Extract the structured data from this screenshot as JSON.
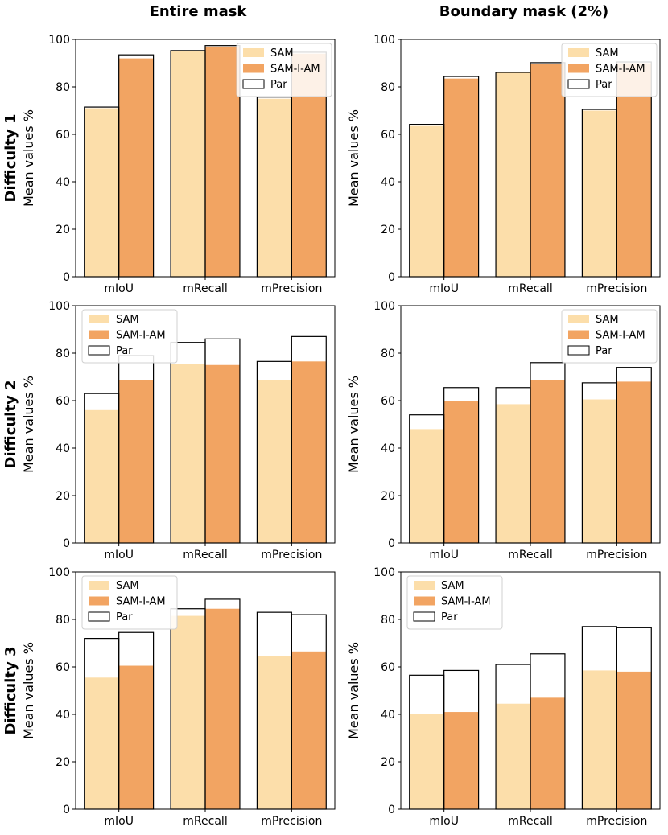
{
  "figure": {
    "column_titles": [
      "Entire mask",
      "Boundary mask (2%)"
    ],
    "row_labels": [
      "Difficulty 1",
      "Difficulty 2",
      "Difficulty 3"
    ]
  },
  "colors": {
    "SAM": "#fcdeaa",
    "SAM-I-AM": "#f2a462",
    "Par_edge": "#000000"
  },
  "chart_data": [
    {
      "type": "bar",
      "row": "Difficulty 1",
      "column": "Entire mask",
      "categories": [
        "mIoU",
        "mRecall",
        "mPrecision"
      ],
      "ylabel": "Mean values %",
      "ylim": [
        0,
        100
      ],
      "yticks": [
        0,
        20,
        40,
        60,
        80,
        100
      ],
      "legend": {
        "entries": [
          "SAM",
          "SAM-I-AM",
          "Par"
        ],
        "position": "upper-right"
      },
      "series": [
        {
          "name": "SAM",
          "values": [
            71,
            95,
            75
          ]
        },
        {
          "name": "SAM-I-AM",
          "values": [
            92,
            97,
            94
          ]
        },
        {
          "name": "Par",
          "values": [
            [
              71.5,
              93.5
            ],
            [
              95.3,
              97.4
            ],
            [
              75.7,
              94.6
            ]
          ]
        }
      ]
    },
    {
      "type": "bar",
      "row": "Difficulty 1",
      "column": "Boundary mask (2%)",
      "categories": [
        "mIoU",
        "mRecall",
        "mPrecision"
      ],
      "ylabel": "Mean values %",
      "ylim": [
        0,
        100
      ],
      "yticks": [
        0,
        20,
        40,
        60,
        80,
        100
      ],
      "legend": {
        "entries": [
          "SAM",
          "SAM-I-AM",
          "Par"
        ],
        "position": "upper-right"
      },
      "series": [
        {
          "name": "SAM",
          "values": [
            63.5,
            86,
            70
          ]
        },
        {
          "name": "SAM-I-AM",
          "values": [
            83.5,
            89.8,
            90
          ]
        },
        {
          "name": "Par",
          "values": [
            [
              64.2,
              84.4
            ],
            [
              86.1,
              90.2
            ],
            [
              70.5,
              90.5
            ]
          ]
        }
      ]
    },
    {
      "type": "bar",
      "row": "Difficulty 2",
      "column": "Entire mask",
      "categories": [
        "mIoU",
        "mRecall",
        "mPrecision"
      ],
      "ylabel": "Mean values %",
      "ylim": [
        0,
        100
      ],
      "yticks": [
        0,
        20,
        40,
        60,
        80,
        100
      ],
      "legend": {
        "entries": [
          "SAM",
          "SAM-I-AM",
          "Par"
        ],
        "position": "upper-left"
      },
      "series": [
        {
          "name": "SAM",
          "values": [
            56,
            75.5,
            68.5
          ]
        },
        {
          "name": "SAM-I-AM",
          "values": [
            68.5,
            75,
            76.5
          ]
        },
        {
          "name": "Par",
          "values": [
            [
              63,
              79
            ],
            [
              84.5,
              86
            ],
            [
              76.5,
              87
            ]
          ]
        }
      ]
    },
    {
      "type": "bar",
      "row": "Difficulty 2",
      "column": "Boundary mask (2%)",
      "categories": [
        "mIoU",
        "mRecall",
        "mPrecision"
      ],
      "ylabel": "Mean values %",
      "ylim": [
        0,
        100
      ],
      "yticks": [
        0,
        20,
        40,
        60,
        80,
        100
      ],
      "legend": {
        "entries": [
          "SAM",
          "SAM-I-AM",
          "Par"
        ],
        "position": "upper-right"
      },
      "series": [
        {
          "name": "SAM",
          "values": [
            48,
            58.5,
            60.5
          ]
        },
        {
          "name": "SAM-I-AM",
          "values": [
            60,
            68.5,
            68
          ]
        },
        {
          "name": "Par",
          "values": [
            [
              54,
              65.5
            ],
            [
              65.5,
              76
            ],
            [
              67.5,
              74
            ]
          ]
        }
      ]
    },
    {
      "type": "bar",
      "row": "Difficulty 3",
      "column": "Entire mask",
      "categories": [
        "mIoU",
        "mRecall",
        "mPrecision"
      ],
      "ylabel": "Mean values %",
      "ylim": [
        0,
        100
      ],
      "yticks": [
        0,
        20,
        40,
        60,
        80,
        100
      ],
      "legend": {
        "entries": [
          "SAM",
          "SAM-I-AM",
          "Par"
        ],
        "position": "upper-left"
      },
      "series": [
        {
          "name": "SAM",
          "values": [
            55.5,
            81.5,
            64.5
          ]
        },
        {
          "name": "SAM-I-AM",
          "values": [
            60.5,
            84.5,
            66.5
          ]
        },
        {
          "name": "Par",
          "values": [
            [
              72,
              74.5
            ],
            [
              84.5,
              88.5
            ],
            [
              83,
              82
            ]
          ]
        }
      ]
    },
    {
      "type": "bar",
      "row": "Difficulty 3",
      "column": "Boundary mask (2%)",
      "categories": [
        "mIoU",
        "mRecall",
        "mPrecision"
      ],
      "ylabel": "Mean values %",
      "ylim": [
        0,
        100
      ],
      "yticks": [
        0,
        20,
        40,
        60,
        80,
        100
      ],
      "legend": {
        "entries": [
          "SAM",
          "SAM-I-AM",
          "Par"
        ],
        "position": "upper-left"
      },
      "series": [
        {
          "name": "SAM",
          "values": [
            40,
            44.5,
            58.5
          ]
        },
        {
          "name": "SAM-I-AM",
          "values": [
            41,
            47,
            58
          ]
        },
        {
          "name": "Par",
          "values": [
            [
              56.5,
              58.5
            ],
            [
              61,
              65.5
            ],
            [
              77,
              76.5
            ]
          ]
        }
      ]
    }
  ]
}
